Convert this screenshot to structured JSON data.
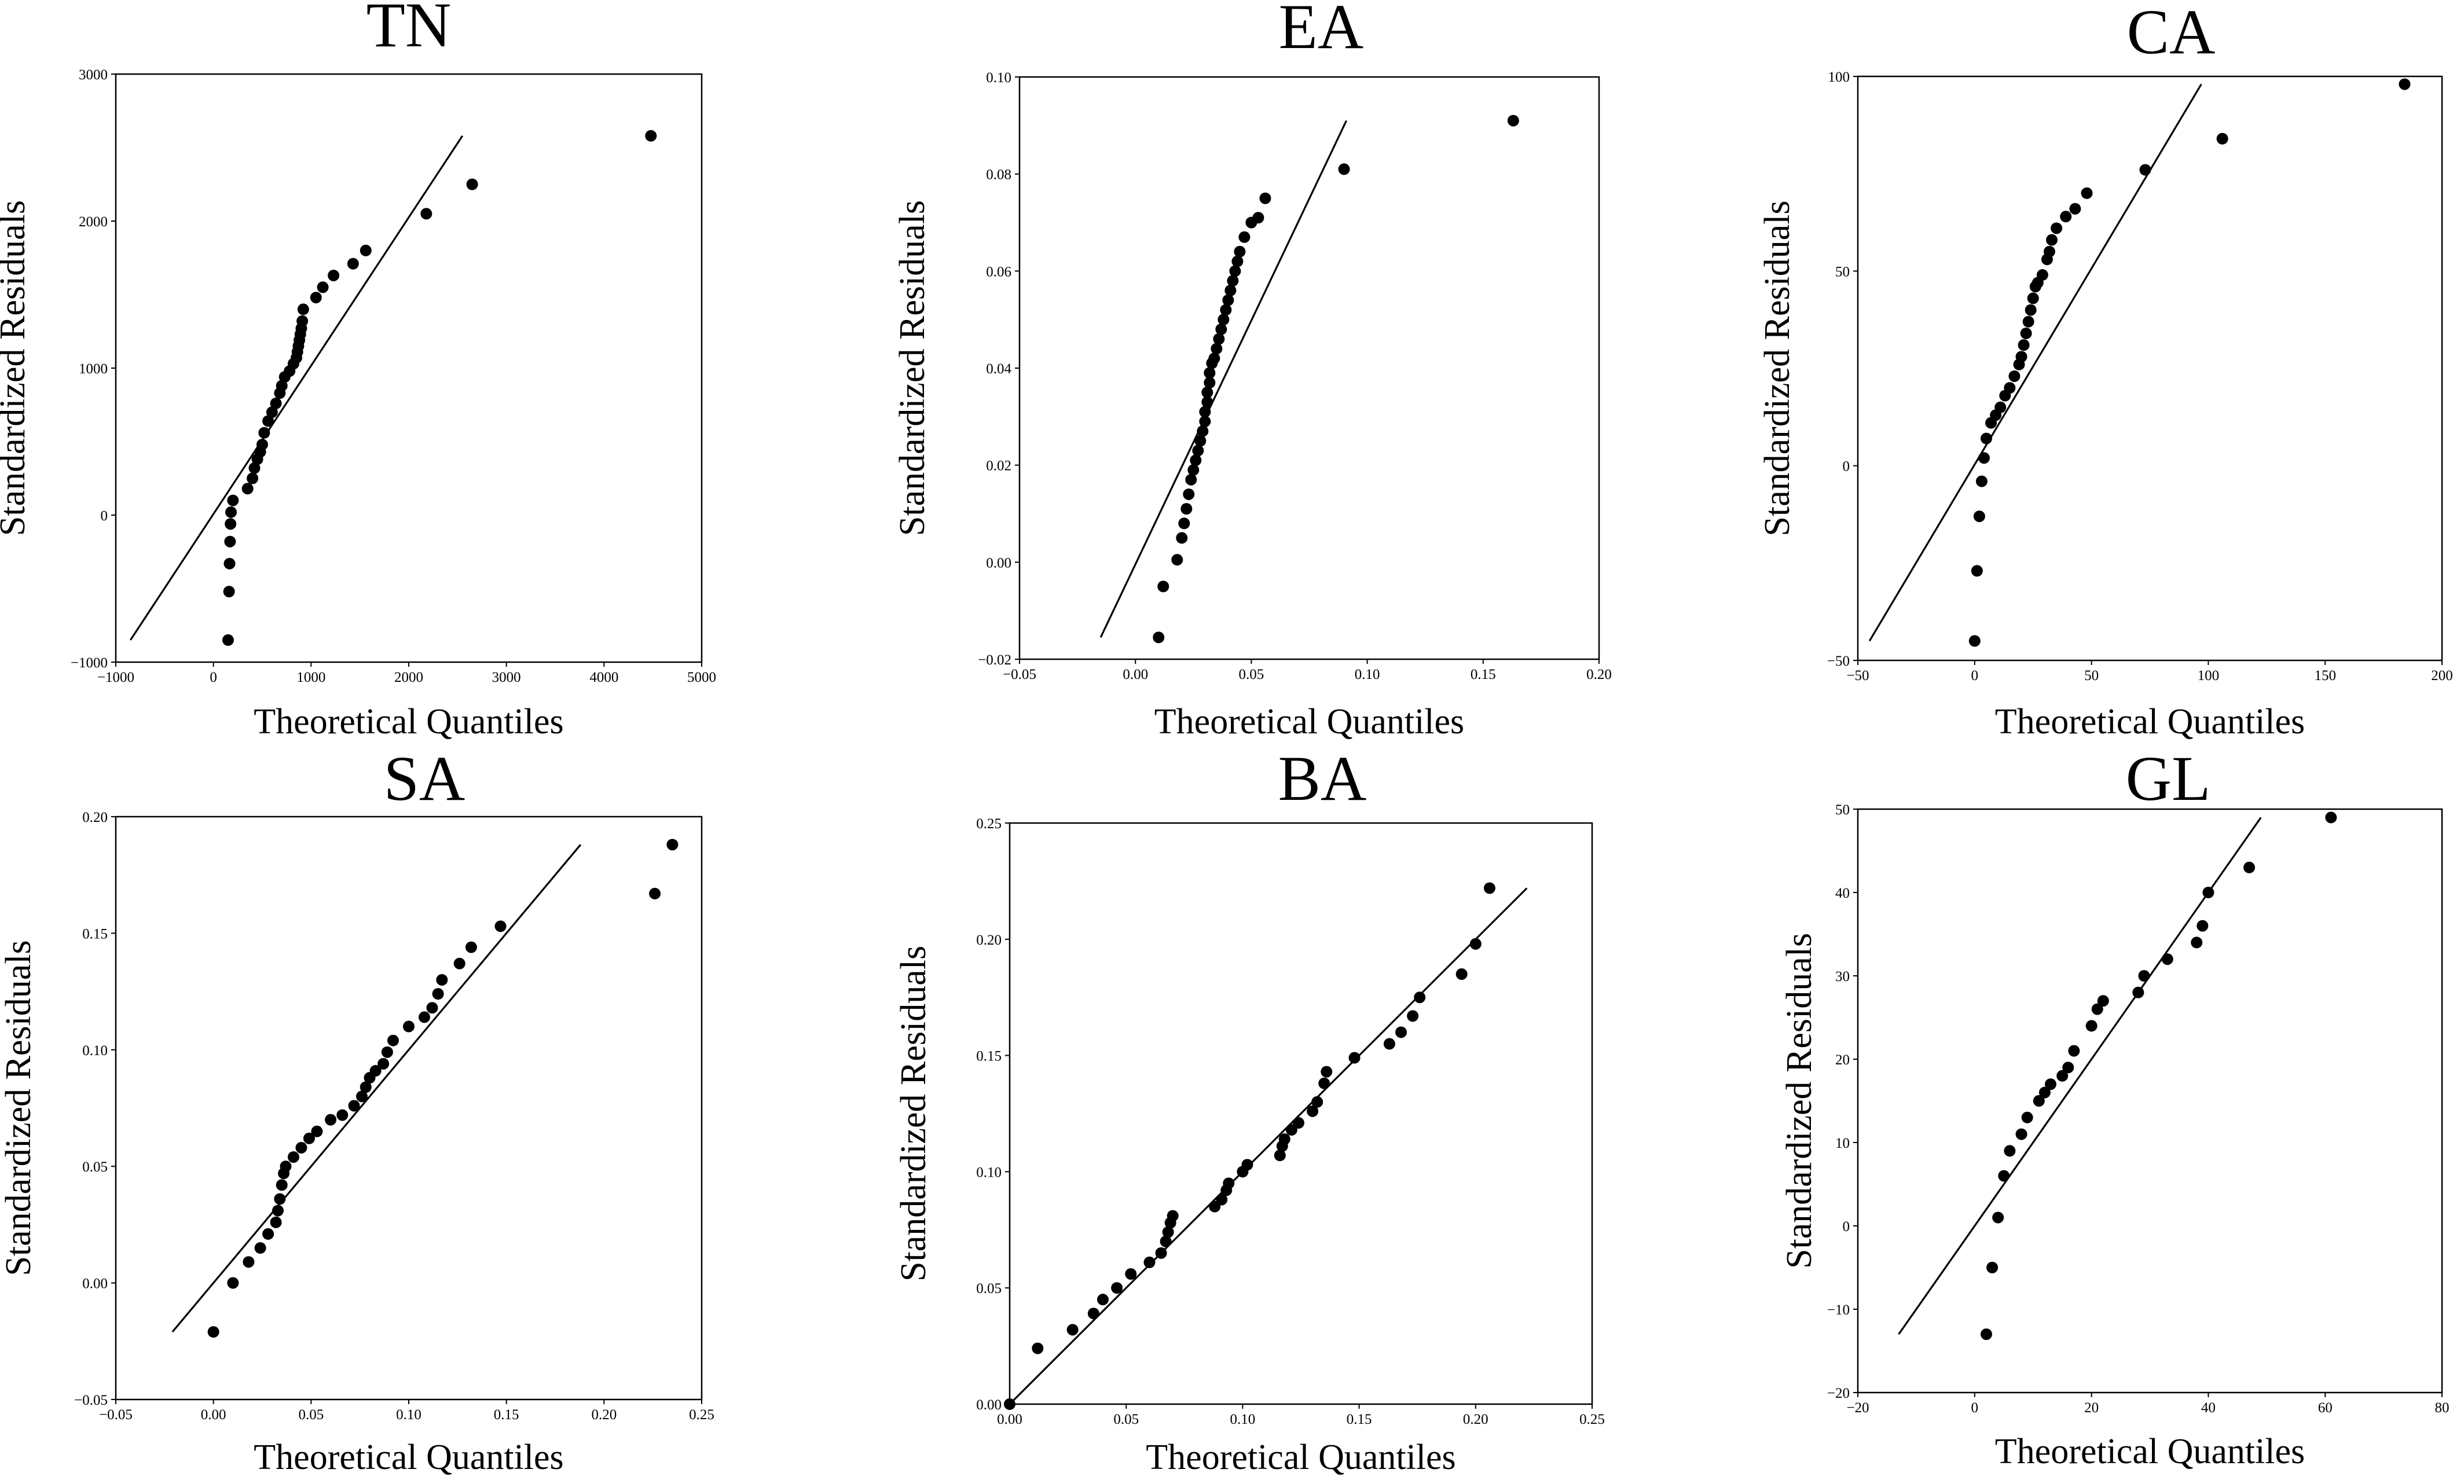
{
  "chart_data": [
    {
      "type": "scatter",
      "title": "TN",
      "xlabel": "Theoretical Quantiles",
      "ylabel": "Standardized Residuals",
      "xlim": [
        -1000,
        5000
      ],
      "ylim": [
        -1000,
        3000
      ],
      "xticks": [
        -1000,
        0,
        1000,
        2000,
        3000,
        4000,
        5000
      ],
      "yticks": [
        -1000,
        0,
        1000,
        2000,
        3000
      ],
      "xtick_labels": [
        "−1000",
        "0",
        "1000",
        "2000",
        "3000",
        "4000",
        "5000"
      ],
      "ytick_labels": [
        "−1000",
        "0",
        "1000",
        "2000",
        "3000"
      ],
      "reference_line": {
        "x": [
          -850,
          2550
        ],
        "y": [
          -850,
          2580
        ]
      },
      "x": [
        150,
        160,
        165,
        170,
        175,
        180,
        200,
        350,
        400,
        420,
        450,
        480,
        500,
        520,
        560,
        600,
        640,
        680,
        700,
        730,
        780,
        820,
        850,
        860,
        870,
        880,
        890,
        900,
        910,
        920,
        1050,
        1120,
        1230,
        1430,
        1560,
        2180,
        2650,
        4480
      ],
      "y": [
        -850,
        -520,
        -330,
        -180,
        -60,
        20,
        100,
        180,
        250,
        320,
        380,
        430,
        480,
        560,
        640,
        700,
        760,
        830,
        880,
        940,
        980,
        1030,
        1070,
        1110,
        1150,
        1190,
        1230,
        1270,
        1320,
        1400,
        1480,
        1550,
        1630,
        1710,
        1800,
        2050,
        2250,
        2580
      ]
    },
    {
      "type": "scatter",
      "title": "EA",
      "xlabel": "Theoretical Quantiles",
      "ylabel": "Standardized Residuals",
      "xlim": [
        -0.05,
        0.2
      ],
      "ylim": [
        -0.02,
        0.1
      ],
      "xticks": [
        -0.05,
        0,
        0.05,
        0.1,
        0.15,
        0.2
      ],
      "yticks": [
        -0.02,
        0,
        0.02,
        0.04,
        0.06,
        0.08,
        0.1
      ],
      "xtick_labels": [
        "−0.05",
        "0.00",
        "0.05",
        "0.10",
        "0.15",
        "0.20"
      ],
      "ytick_labels": [
        "−0.02",
        "0.00",
        "0.02",
        "0.04",
        "0.06",
        "0.08",
        "0.10"
      ],
      "reference_line": {
        "x": [
          -0.015,
          0.091
        ],
        "y": [
          -0.0155,
          0.091
        ]
      },
      "x": [
        0.01,
        0.012,
        0.018,
        0.02,
        0.021,
        0.022,
        0.023,
        0.024,
        0.025,
        0.026,
        0.027,
        0.028,
        0.029,
        0.03,
        0.03,
        0.031,
        0.031,
        0.032,
        0.032,
        0.033,
        0.034,
        0.035,
        0.036,
        0.037,
        0.038,
        0.039,
        0.04,
        0.041,
        0.042,
        0.043,
        0.044,
        0.045,
        0.047,
        0.05,
        0.053,
        0.056,
        0.09,
        0.163
      ],
      "y": [
        -0.0155,
        -0.005,
        0.0005,
        0.005,
        0.008,
        0.011,
        0.014,
        0.017,
        0.019,
        0.021,
        0.023,
        0.025,
        0.027,
        0.029,
        0.031,
        0.033,
        0.035,
        0.037,
        0.039,
        0.041,
        0.042,
        0.044,
        0.046,
        0.048,
        0.05,
        0.052,
        0.054,
        0.056,
        0.058,
        0.06,
        0.062,
        0.064,
        0.067,
        0.07,
        0.071,
        0.075,
        0.081,
        0.091
      ]
    },
    {
      "type": "scatter",
      "title": "CA",
      "xlabel": "Theoretical Quantiles",
      "ylabel": "Standardized Residuals",
      "xlim": [
        -50,
        200
      ],
      "ylim": [
        -50,
        100
      ],
      "xticks": [
        -50,
        0,
        50,
        100,
        150,
        200
      ],
      "yticks": [
        -50,
        0,
        50,
        100
      ],
      "xtick_labels": [
        "−50",
        "0",
        "50",
        "100",
        "150",
        "200"
      ],
      "ytick_labels": [
        "−50",
        "0",
        "50",
        "100"
      ],
      "reference_line": {
        "x": [
          -45,
          97
        ],
        "y": [
          -45,
          98
        ]
      },
      "x": [
        0,
        1,
        2,
        3,
        4,
        5,
        7,
        9,
        11,
        13,
        15,
        17,
        19,
        20,
        21,
        22,
        23,
        24,
        25,
        26,
        27,
        29,
        31,
        32,
        33,
        35,
        39,
        43,
        48,
        73,
        106,
        184
      ],
      "y": [
        -45,
        -27,
        -13,
        -4,
        2,
        7,
        11,
        13,
        15,
        18,
        20,
        23,
        26,
        28,
        31,
        34,
        37,
        40,
        43,
        46,
        47,
        49,
        53,
        55,
        58,
        61,
        64,
        66,
        70,
        76,
        84,
        98
      ]
    },
    {
      "type": "scatter",
      "title": "SA",
      "xlabel": "Theoretical Quantiles",
      "ylabel": "Standardized Residuals",
      "xlim": [
        -0.05,
        0.25
      ],
      "ylim": [
        -0.05,
        0.2
      ],
      "xticks": [
        -0.05,
        0,
        0.05,
        0.1,
        0.15,
        0.2,
        0.25
      ],
      "yticks": [
        -0.05,
        0,
        0.05,
        0.1,
        0.15,
        0.2
      ],
      "xtick_labels": [
        "−0.05",
        "0.00",
        "0.05",
        "0.10",
        "0.15",
        "0.20",
        "0.25"
      ],
      "ytick_labels": [
        "−0.05",
        "0.00",
        "0.05",
        "0.10",
        "0.15",
        "0.20"
      ],
      "reference_line": {
        "x": [
          -0.021,
          0.188
        ],
        "y": [
          -0.021,
          0.188
        ]
      },
      "x": [
        0,
        0.01,
        0.018,
        0.024,
        0.028,
        0.032,
        0.033,
        0.034,
        0.035,
        0.036,
        0.037,
        0.041,
        0.045,
        0.049,
        0.053,
        0.06,
        0.066,
        0.072,
        0.076,
        0.078,
        0.08,
        0.083,
        0.087,
        0.089,
        0.092,
        0.1,
        0.108,
        0.112,
        0.115,
        0.117,
        0.126,
        0.132,
        0.147,
        0.226,
        0.235
      ],
      "y": [
        -0.021,
        0,
        0.009,
        0.015,
        0.021,
        0.026,
        0.031,
        0.036,
        0.042,
        0.047,
        0.05,
        0.054,
        0.058,
        0.062,
        0.065,
        0.07,
        0.072,
        0.076,
        0.08,
        0.084,
        0.088,
        0.091,
        0.094,
        0.099,
        0.104,
        0.11,
        0.114,
        0.118,
        0.124,
        0.13,
        0.137,
        0.144,
        0.153,
        0.167,
        0.188
      ]
    },
    {
      "type": "scatter",
      "title": "BA",
      "xlabel": "Theoretical Quantiles",
      "ylabel": "Standardized Residuals",
      "xlim": [
        0,
        0.25
      ],
      "ylim": [
        0,
        0.25
      ],
      "xticks": [
        0,
        0.05,
        0.1,
        0.15,
        0.2,
        0.25
      ],
      "yticks": [
        0,
        0.05,
        0.1,
        0.15,
        0.2,
        0.25
      ],
      "xtick_labels": [
        "0.00",
        "0.05",
        "0.10",
        "0.15",
        "0.20",
        "0.25"
      ],
      "ytick_labels": [
        "0.00",
        "0.05",
        "0.10",
        "0.15",
        "0.20",
        "0.25"
      ],
      "reference_line": {
        "x": [
          0,
          0.222
        ],
        "y": [
          0,
          0.222
        ]
      },
      "x": [
        0,
        0.012,
        0.027,
        0.036,
        0.04,
        0.046,
        0.052,
        0.06,
        0.065,
        0.067,
        0.068,
        0.069,
        0.07,
        0.088,
        0.091,
        0.093,
        0.094,
        0.1,
        0.102,
        0.116,
        0.117,
        0.118,
        0.121,
        0.124,
        0.13,
        0.132,
        0.135,
        0.136,
        0.148,
        0.163,
        0.168,
        0.173,
        0.176,
        0.194,
        0.2,
        0.206
      ],
      "y": [
        0,
        0.024,
        0.032,
        0.039,
        0.045,
        0.05,
        0.056,
        0.061,
        0.065,
        0.07,
        0.074,
        0.078,
        0.081,
        0.085,
        0.088,
        0.092,
        0.095,
        0.1,
        0.103,
        0.107,
        0.111,
        0.114,
        0.118,
        0.121,
        0.126,
        0.13,
        0.138,
        0.143,
        0.149,
        0.155,
        0.16,
        0.167,
        0.175,
        0.185,
        0.198,
        0.222
      ]
    },
    {
      "type": "scatter",
      "title": "GL",
      "xlabel": "Theoretical Quantiles",
      "ylabel": "Standardized Residuals",
      "xlim": [
        -20,
        80
      ],
      "ylim": [
        -20,
        50
      ],
      "xticks": [
        -20,
        0,
        20,
        40,
        60,
        80
      ],
      "yticks": [
        -20,
        -10,
        0,
        10,
        20,
        30,
        40,
        50
      ],
      "xtick_labels": [
        "−20",
        "0",
        "20",
        "40",
        "60",
        "80"
      ],
      "ytick_labels": [
        "−20",
        "−10",
        "0",
        "10",
        "20",
        "30",
        "40",
        "50"
      ],
      "reference_line": {
        "x": [
          -13,
          49
        ],
        "y": [
          -13,
          49
        ]
      },
      "x": [
        2,
        3,
        4,
        5,
        6,
        8,
        9,
        11,
        12,
        13,
        15,
        16,
        17,
        20,
        21,
        22,
        28,
        29,
        33,
        38,
        39,
        40,
        47,
        61
      ],
      "y": [
        -13,
        -5,
        1,
        6,
        9,
        11,
        13,
        15,
        16,
        17,
        18,
        19,
        21,
        24,
        26,
        27,
        28,
        30,
        32,
        34,
        36,
        40,
        43,
        49
      ]
    }
  ]
}
